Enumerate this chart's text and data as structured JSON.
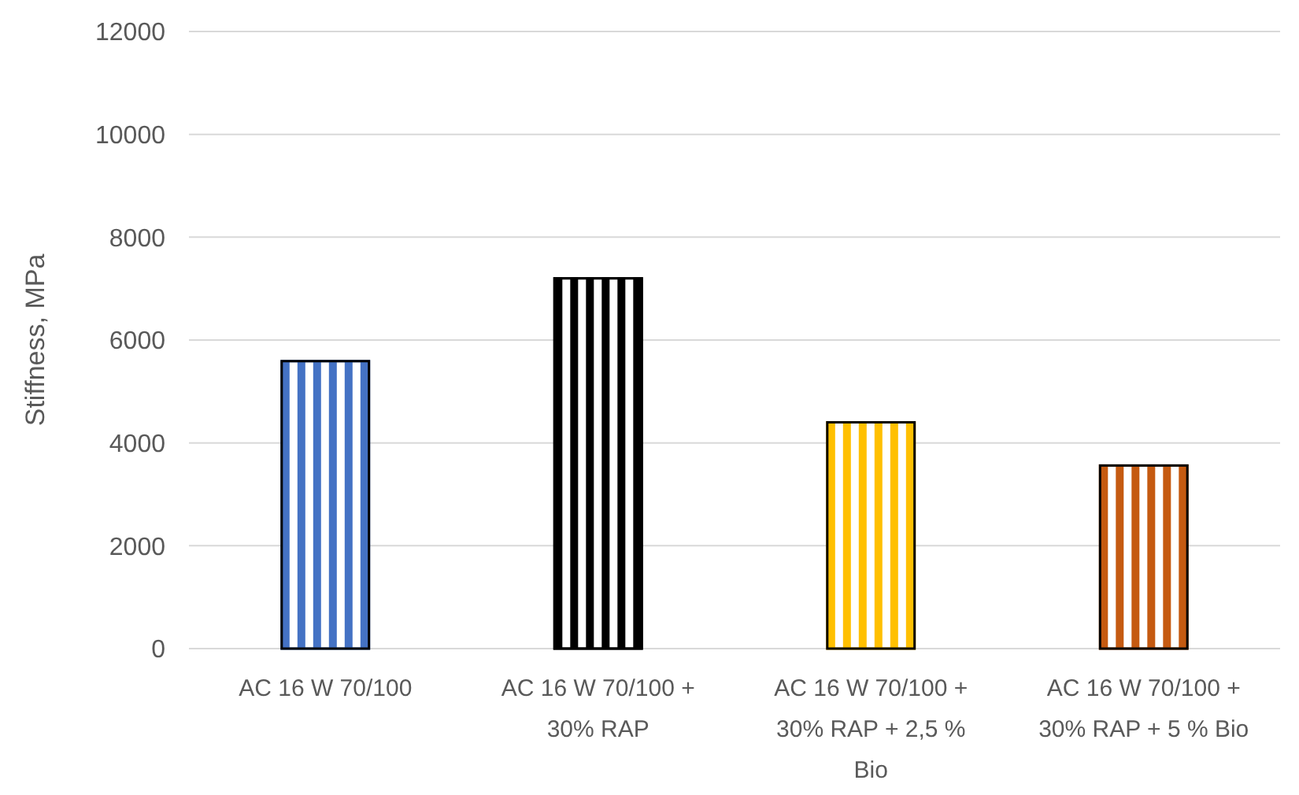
{
  "chart_data": {
    "type": "bar",
    "ylabel": "Stiffness, MPa",
    "categories": [
      "AC 16 W 70/100",
      "AC 16 W 70/100 + 30% RAP",
      "AC 16 W 70/100 + 30% RAP + 2,5 % Bio",
      "AC 16 W 70/100 + 30% RAP + 5 % Bio"
    ],
    "values": [
      5590,
      7200,
      4400,
      3560
    ],
    "colors": [
      "#4472c4",
      "#000000",
      "#ffc000",
      "#c55a11"
    ],
    "ylim": [
      0,
      12000
    ],
    "yticks": [
      0,
      2000,
      4000,
      6000,
      8000,
      10000,
      12000
    ],
    "grid": "y"
  }
}
